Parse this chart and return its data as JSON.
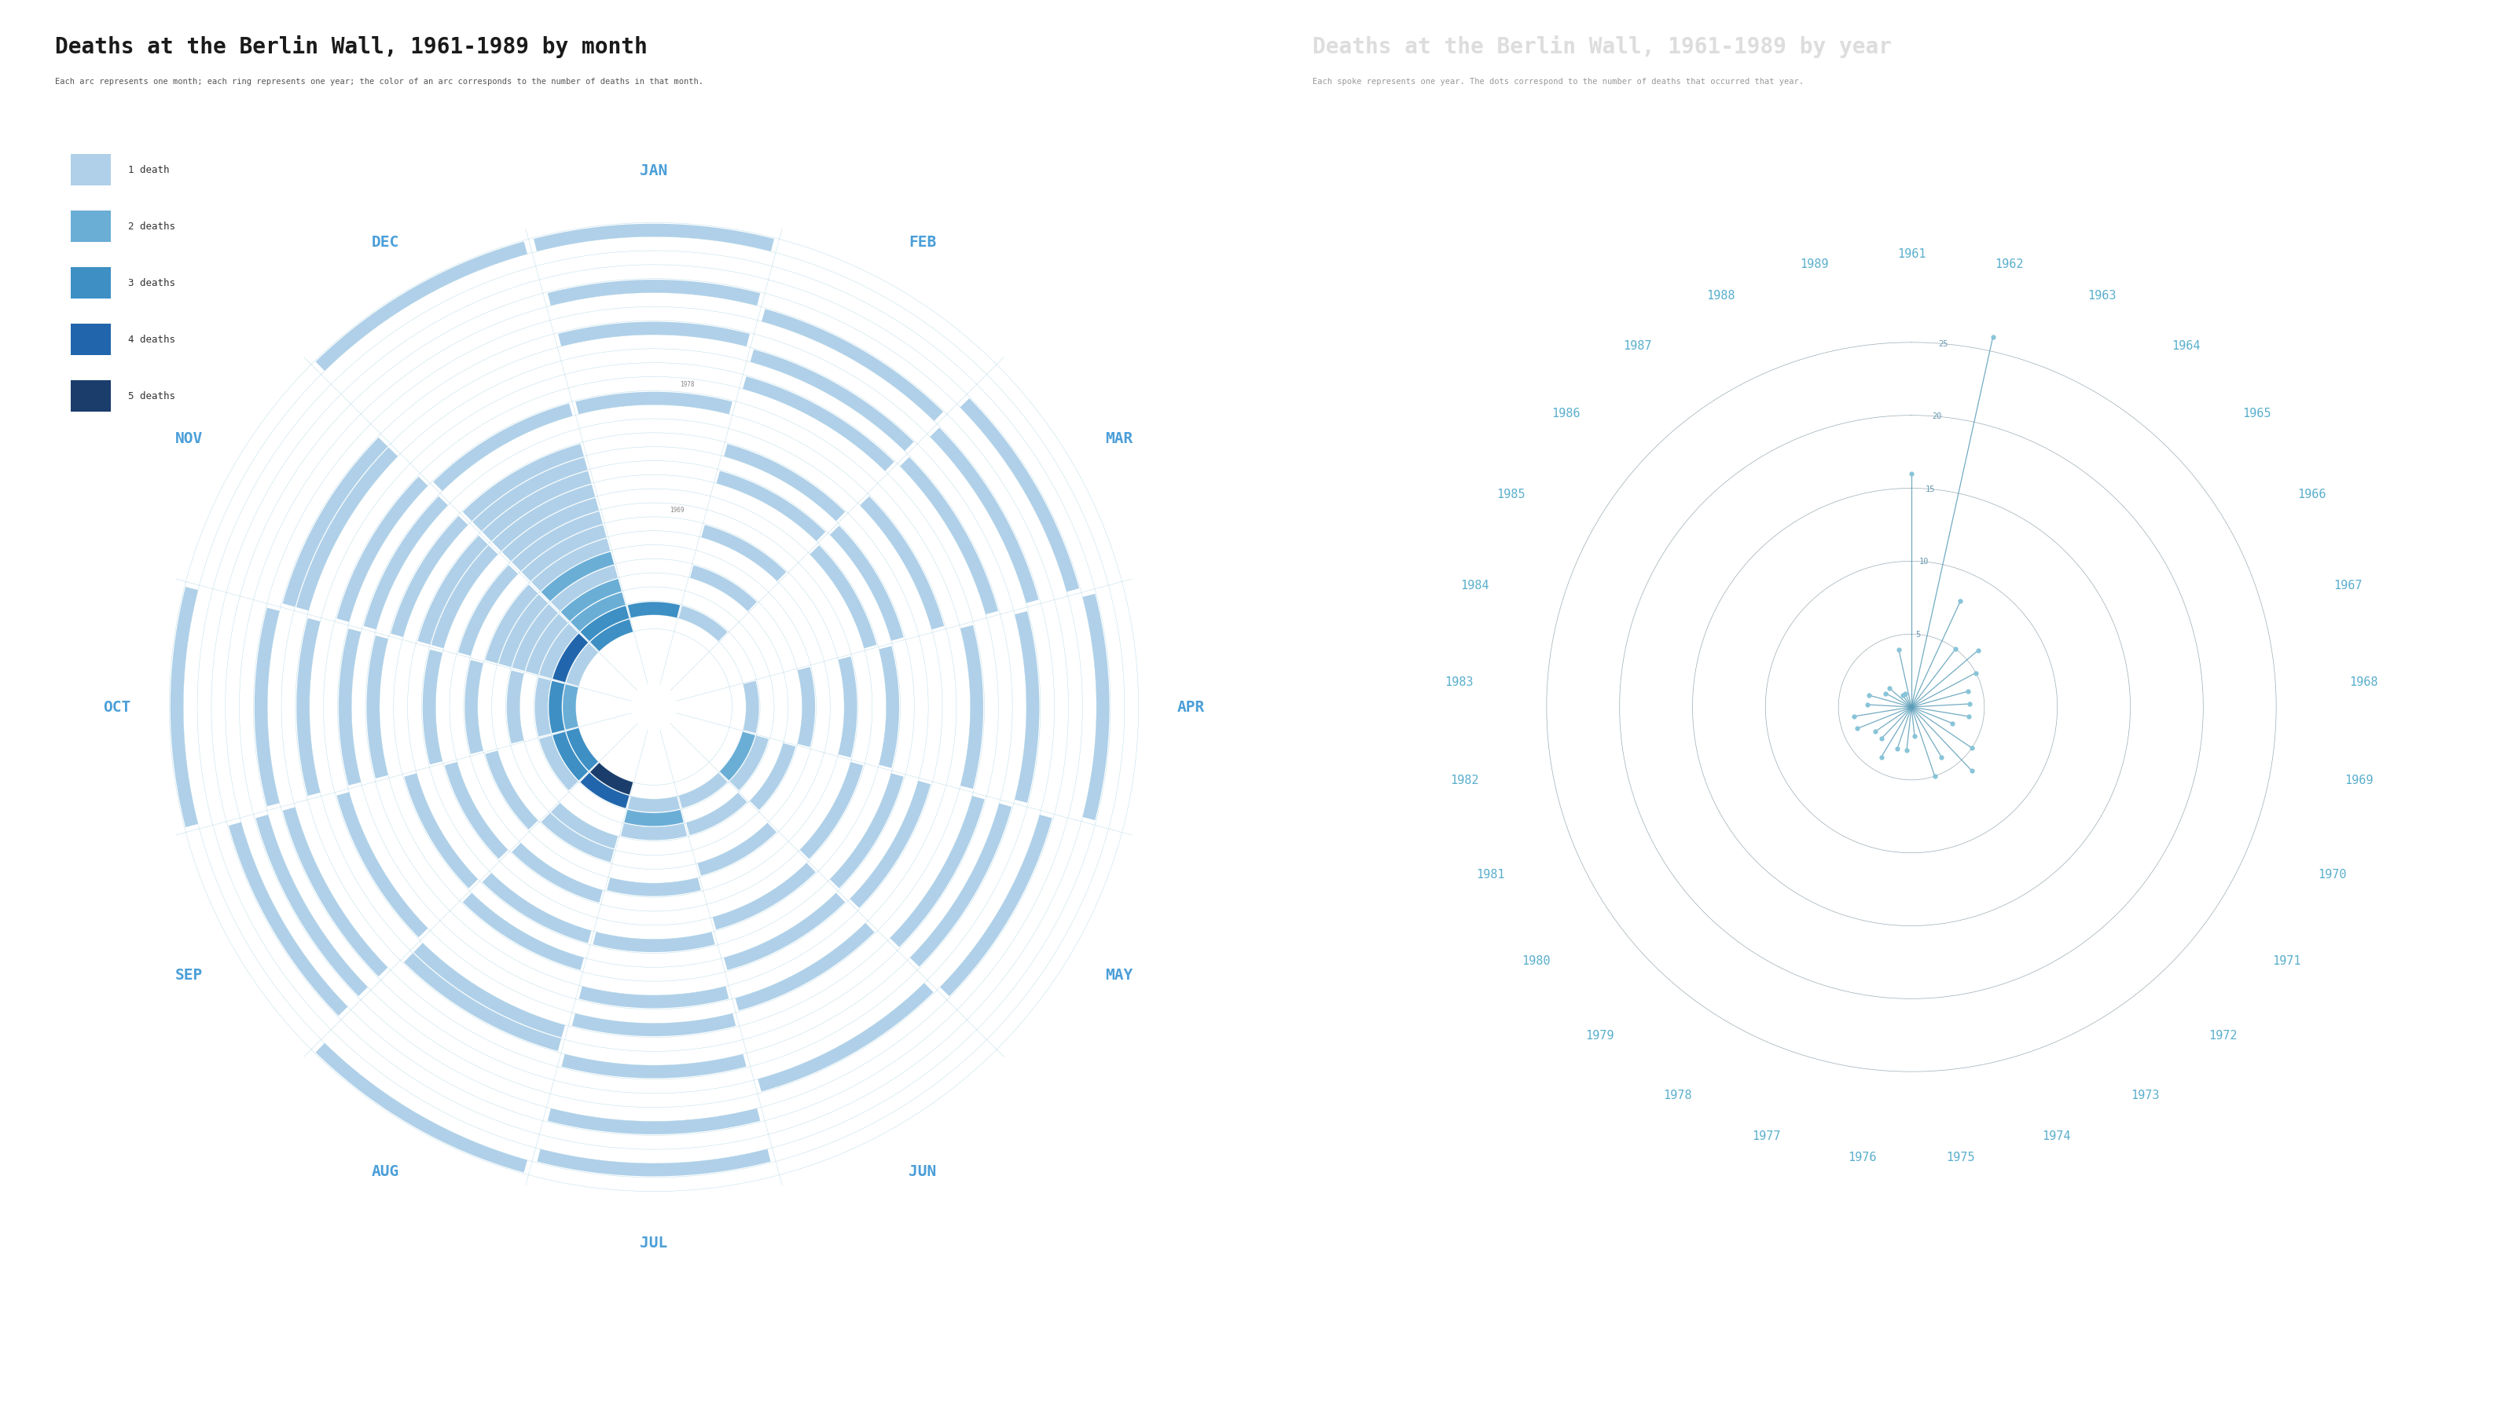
{
  "title_left": "Deaths at the Berlin Wall, 1961-1989 by month",
  "subtitle_left": "Each arc represents one month; each ring represents one year; the color of an arc corresponds to the number of deaths in that month.",
  "title_right": "Deaths at the Berlin Wall, 1961-1989 by year",
  "subtitle_right": "Each spoke represents one year. The dots correspond to the number of deaths that occurred that year.",
  "bg_left": "#ffffff",
  "bg_right": "#2b2b3b",
  "months": [
    "JAN",
    "FEB",
    "MAR",
    "APR",
    "MAY",
    "JUN",
    "JUL",
    "AUG",
    "SEP",
    "OCT",
    "NOV",
    "DEC"
  ],
  "years": [
    1961,
    1962,
    1963,
    1964,
    1965,
    1966,
    1967,
    1968,
    1969,
    1970,
    1971,
    1972,
    1973,
    1974,
    1975,
    1976,
    1977,
    1978,
    1979,
    1980,
    1981,
    1982,
    1983,
    1984,
    1985,
    1986,
    1987,
    1988,
    1989
  ],
  "deaths_by_year": [
    16,
    26,
    8,
    5,
    6,
    5,
    4,
    4,
    4,
    3,
    5,
    6,
    4,
    5,
    2,
    3,
    3,
    4,
    3,
    3,
    4,
    4,
    3,
    3,
    2,
    2,
    1,
    1,
    4
  ],
  "deaths_by_month_year": {
    "1961": [
      0,
      0,
      0,
      0,
      0,
      0,
      0,
      7,
      3,
      2,
      1,
      3
    ],
    "1962": [
      3,
      1,
      0,
      1,
      2,
      1,
      1,
      4,
      3,
      3,
      4,
      3
    ],
    "1963": [
      0,
      0,
      0,
      0,
      1,
      0,
      2,
      0,
      1,
      1,
      1,
      2
    ],
    "1964": [
      0,
      0,
      0,
      0,
      0,
      1,
      1,
      0,
      0,
      0,
      1,
      2
    ],
    "1965": [
      0,
      1,
      0,
      0,
      1,
      0,
      0,
      1,
      0,
      1,
      1,
      1
    ],
    "1966": [
      0,
      0,
      0,
      1,
      0,
      0,
      0,
      1,
      0,
      0,
      1,
      2
    ],
    "1967": [
      0,
      0,
      0,
      0,
      0,
      1,
      0,
      0,
      1,
      0,
      1,
      1
    ],
    "1968": [
      0,
      1,
      0,
      0,
      0,
      0,
      1,
      0,
      0,
      1,
      0,
      1
    ],
    "1969": [
      0,
      0,
      0,
      1,
      0,
      0,
      0,
      1,
      0,
      0,
      1,
      1
    ],
    "1970": [
      0,
      0,
      0,
      0,
      1,
      0,
      0,
      0,
      1,
      0,
      0,
      1
    ],
    "1971": [
      0,
      0,
      1,
      0,
      0,
      1,
      0,
      0,
      0,
      1,
      1,
      1
    ],
    "1972": [
      0,
      1,
      0,
      1,
      0,
      0,
      1,
      1,
      0,
      0,
      1,
      1
    ],
    "1973": [
      0,
      0,
      1,
      0,
      1,
      0,
      0,
      0,
      1,
      0,
      0,
      1
    ],
    "1974": [
      0,
      1,
      0,
      0,
      0,
      1,
      0,
      1,
      0,
      0,
      1,
      1
    ],
    "1975": [
      0,
      0,
      0,
      0,
      1,
      0,
      0,
      0,
      0,
      1,
      0,
      0
    ],
    "1976": [
      0,
      0,
      1,
      0,
      0,
      0,
      1,
      0,
      0,
      0,
      1,
      0
    ],
    "1977": [
      1,
      0,
      0,
      0,
      0,
      1,
      0,
      0,
      0,
      1,
      0,
      1
    ],
    "1978": [
      0,
      0,
      0,
      1,
      0,
      0,
      1,
      0,
      1,
      0,
      1,
      0
    ],
    "1979": [
      0,
      1,
      0,
      0,
      1,
      0,
      0,
      1,
      0,
      0,
      0,
      0
    ],
    "1980": [
      0,
      0,
      1,
      0,
      0,
      0,
      0,
      1,
      0,
      1,
      0,
      0
    ],
    "1981": [
      0,
      1,
      0,
      0,
      1,
      0,
      1,
      0,
      0,
      0,
      1,
      0
    ],
    "1982": [
      1,
      0,
      0,
      1,
      0,
      0,
      0,
      0,
      1,
      0,
      1,
      0
    ],
    "1983": [
      0,
      0,
      1,
      0,
      0,
      1,
      0,
      0,
      0,
      1,
      0,
      0
    ],
    "1984": [
      0,
      1,
      0,
      0,
      1,
      0,
      0,
      0,
      1,
      0,
      0,
      0
    ],
    "1985": [
      1,
      0,
      0,
      0,
      0,
      0,
      1,
      0,
      0,
      0,
      0,
      0
    ],
    "1986": [
      0,
      0,
      1,
      0,
      0,
      0,
      0,
      0,
      1,
      0,
      0,
      0
    ],
    "1987": [
      0,
      0,
      0,
      1,
      0,
      0,
      0,
      0,
      0,
      0,
      0,
      0
    ],
    "1988": [
      0,
      0,
      0,
      0,
      0,
      0,
      1,
      0,
      0,
      0,
      0,
      0
    ],
    "1989": [
      1,
      0,
      0,
      0,
      0,
      0,
      0,
      1,
      0,
      1,
      0,
      1
    ]
  },
  "death_colors": [
    "#afd0e8",
    "#6aaed6",
    "#3d8fc4",
    "#2166ac",
    "#1a3d6b"
  ],
  "grid_color_left": "#7fbcd4",
  "month_label_color": "#4a9ed8",
  "year_label_color_left": "#aaaaaa",
  "bg_right_hex": "#2b2d3e",
  "spoke_line_color": "#5a9db8",
  "spoke_dot_color": "#88c4d8",
  "ring_label_color": "#6a9ab0",
  "year_label_color_right": "#5aafcc",
  "ring_guide_color": "#3a5a6a",
  "radial_label_vals": [
    5,
    10,
    15,
    20,
    25
  ],
  "legend_labels": [
    "1 death",
    "2 deaths",
    "3 deaths",
    "4 deaths",
    "5 deaths"
  ]
}
